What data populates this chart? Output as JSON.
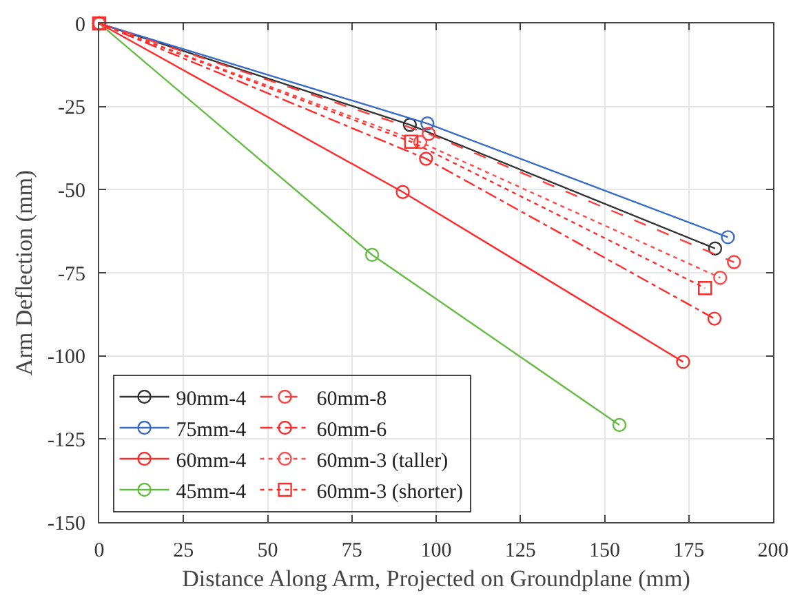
{
  "chart_data": {
    "type": "line",
    "xlabel": "Distance Along Arm, Projected on Groundplane (mm)",
    "ylabel": "Arm Deflection (mm)",
    "xlim": [
      0,
      200
    ],
    "xticks": [
      0,
      25,
      50,
      75,
      100,
      125,
      150,
      175,
      200
    ],
    "ylim": [
      -150,
      0
    ],
    "yticks": [
      -150,
      -125,
      -100,
      -75,
      -50,
      -25,
      0
    ],
    "grid": true,
    "legend": "bottom left",
    "marker": "circle",
    "series": [
      {
        "name": "90mm-4",
        "color": "#333333",
        "line_style": "solid",
        "x": [
          0,
          92.2,
          182.8
        ],
        "values": [
          0,
          -30.5,
          -67.7
        ]
      },
      {
        "name": "75mm-4",
        "color": "#3a6bc4",
        "line_style": "solid",
        "x": [
          0,
          97.4,
          186.6
        ],
        "values": [
          0,
          -30.1,
          -64.3
        ]
      },
      {
        "name": "60mm-4",
        "color": "#ff2a2a",
        "line_style": "solid",
        "x": [
          0,
          90.1,
          173.3
        ],
        "values": [
          0,
          -50.7,
          -101.8
        ]
      },
      {
        "name": "45mm-4",
        "color": "#66bb44",
        "line_style": "solid",
        "x": [
          0,
          81,
          154.4
        ],
        "values": [
          0,
          -69.6,
          -120.8
        ]
      },
      {
        "name": "60mm-8",
        "color": "#ff3b3b",
        "line_style": "dashed",
        "x": [
          0,
          97.8,
          188.4
        ],
        "values": [
          0,
          -33.2,
          -71.8
        ]
      },
      {
        "name": "60mm-6",
        "color": "#ff2a2a",
        "line_style": "dashdot",
        "x": [
          0,
          97,
          182.6
        ],
        "values": [
          0,
          -40.7,
          -88.8
        ]
      },
      {
        "name": "60mm-3 (taller)",
        "color": "#ff4a4a",
        "line_style": "dotted",
        "x": [
          0,
          95.3,
          184.3
        ],
        "values": [
          0,
          -35.7,
          -76.5
        ]
      },
      {
        "name": "60mm-3 (shorter)",
        "color": "#ff2a2a",
        "line_style": "dotted",
        "marker": "square",
        "x": [
          0,
          92.6,
          179.8
        ],
        "values": [
          0,
          -35.6,
          -79.6
        ]
      }
    ]
  }
}
